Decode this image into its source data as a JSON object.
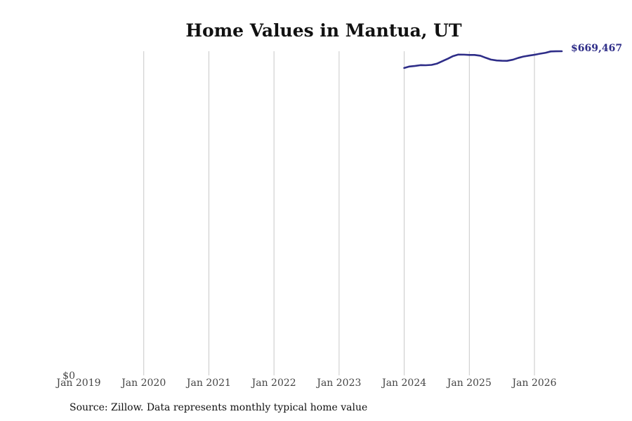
{
  "chart_data": {
    "type": "line",
    "title": "Home Values in Mantua, UT",
    "xlabel": "",
    "ylabel": "",
    "x_tick_labels": [
      "Jan 2019",
      "Jan 2020",
      "Jan 2021",
      "Jan 2022",
      "Jan 2023",
      "Jan 2024",
      "Jan 2025",
      "Jan 2026"
    ],
    "x_tick_years": [
      2019,
      2020,
      2021,
      2022,
      2023,
      2024,
      2025,
      2026
    ],
    "xlim": [
      2019.0,
      2026.42
    ],
    "y_tick_labels": [
      "$0"
    ],
    "y_tick_values": [
      0
    ],
    "ylim": [
      0,
      669467
    ],
    "grid": "vertical",
    "color": "#2e2d88",
    "last_value_label": "$669,467",
    "series": [
      {
        "x": [
          2024.0,
          2024.08,
          2024.17,
          2024.25,
          2024.33,
          2024.42,
          2024.5,
          2024.58,
          2024.67,
          2024.75,
          2024.83,
          2024.92,
          2025.0,
          2025.08,
          2025.17,
          2025.25,
          2025.33,
          2025.42,
          2025.5,
          2025.58,
          2025.67,
          2025.75,
          2025.83,
          2025.92,
          2026.0,
          2026.08,
          2026.17,
          2026.25,
          2026.33,
          2026.42
        ],
        "values": [
          634900,
          637900,
          639100,
          640700,
          640500,
          641200,
          643700,
          648600,
          654000,
          659400,
          662500,
          662400,
          661800,
          661800,
          660200,
          656000,
          652300,
          650400,
          649800,
          649600,
          652000,
          655600,
          658400,
          660500,
          662100,
          664200,
          666200,
          669000,
          669400,
          669467
        ]
      }
    ]
  },
  "footer": {
    "source": "Source: Zillow. Data represents monthly typical home value"
  }
}
